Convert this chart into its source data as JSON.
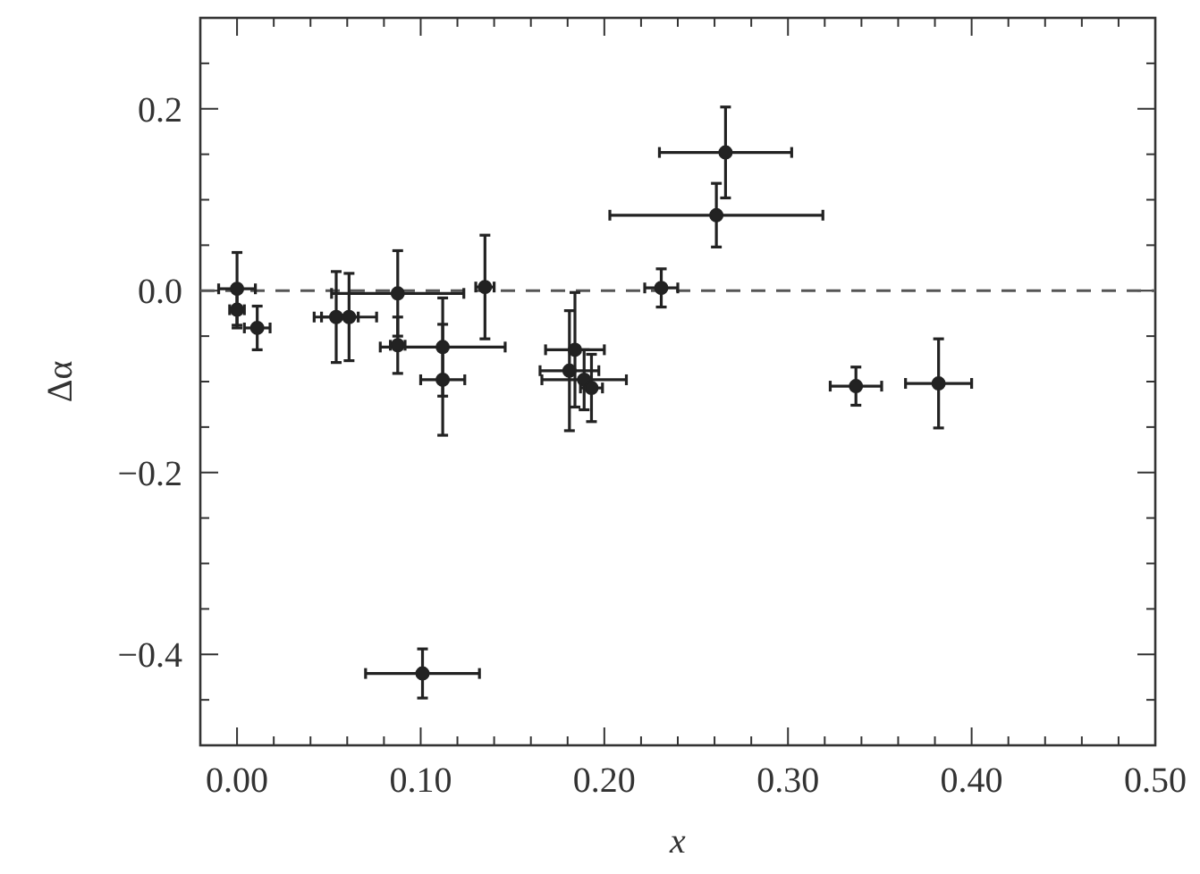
{
  "chart_data": {
    "type": "scatter",
    "xlabel": "x",
    "ylabel": "Δα",
    "xlim": [
      -0.02,
      0.5
    ],
    "ylim": [
      -0.5,
      0.3
    ],
    "xticks": [
      {
        "value": 0,
        "label": "0.00"
      },
      {
        "value": 0.02,
        "label": null
      },
      {
        "value": 0.04,
        "label": null
      },
      {
        "value": 0.06,
        "label": null
      },
      {
        "value": 0.08,
        "label": null
      },
      {
        "value": 0.1,
        "label": "0.10"
      },
      {
        "value": 0.12,
        "label": null
      },
      {
        "value": 0.14,
        "label": null
      },
      {
        "value": 0.16,
        "label": null
      },
      {
        "value": 0.18,
        "label": null
      },
      {
        "value": 0.2,
        "label": "0.20"
      },
      {
        "value": 0.22,
        "label": null
      },
      {
        "value": 0.24,
        "label": null
      },
      {
        "value": 0.26,
        "label": null
      },
      {
        "value": 0.28,
        "label": null
      },
      {
        "value": 0.3,
        "label": "0.30"
      },
      {
        "value": 0.32,
        "label": null
      },
      {
        "value": 0.34,
        "label": null
      },
      {
        "value": 0.36,
        "label": null
      },
      {
        "value": 0.38,
        "label": null
      },
      {
        "value": 0.4,
        "label": "0.40"
      },
      {
        "value": 0.42,
        "label": null
      },
      {
        "value": 0.44,
        "label": null
      },
      {
        "value": 0.46,
        "label": null
      },
      {
        "value": 0.48,
        "label": null
      },
      {
        "value": 0.5,
        "label": "0.50"
      }
    ],
    "yticks": [
      {
        "value": -0.45,
        "label": null
      },
      {
        "value": -0.4,
        "label": "−0.4"
      },
      {
        "value": -0.35,
        "label": null
      },
      {
        "value": -0.3,
        "label": null
      },
      {
        "value": -0.25,
        "label": null
      },
      {
        "value": -0.2,
        "label": "−0.2"
      },
      {
        "value": -0.15,
        "label": null
      },
      {
        "value": -0.1,
        "label": null
      },
      {
        "value": -0.05,
        "label": null
      },
      {
        "value": 0,
        "label": "0.0"
      },
      {
        "value": 0.05,
        "label": null
      },
      {
        "value": 0.1,
        "label": null
      },
      {
        "value": 0.15,
        "label": null
      },
      {
        "value": 0.2,
        "label": "0.2"
      },
      {
        "value": 0.25,
        "label": null
      }
    ],
    "marker": "circle",
    "ref_lines": [
      {
        "axis": "y",
        "value": 0,
        "line_style": "dashed",
        "color": "#555555"
      }
    ],
    "series": [
      {
        "color": "#222222",
        "x": [
          0.0,
          0.0,
          0.011,
          0.054,
          0.061,
          0.0875,
          0.0875,
          0.112,
          0.112,
          0.135,
          0.266,
          0.261,
          0.231,
          0.184,
          0.181,
          0.189,
          0.193,
          0.337,
          0.382,
          0.101
        ],
        "values": [
          0.002,
          -0.021,
          -0.041,
          -0.029,
          -0.029,
          -0.003,
          -0.06,
          -0.062,
          -0.098,
          0.004,
          0.152,
          0.083,
          0.003,
          -0.065,
          -0.088,
          -0.098,
          -0.107,
          -0.105,
          -0.102,
          -0.421
        ],
        "errors": [
          0.04,
          0.02,
          0.024,
          0.05,
          0.048,
          0.047,
          0.031,
          0.054,
          0.061,
          0.057,
          0.05,
          0.035,
          0.021,
          0.063,
          0.066,
          0.033,
          0.037,
          0.021,
          0.049,
          0.027
        ],
        "xerrors": [
          0.01,
          0.004,
          0.007,
          0.012,
          0.015,
          0.036,
          0.004,
          0.034,
          0.012,
          0.005,
          0.036,
          0.058,
          0.009,
          0.016,
          0.016,
          0.023,
          0.006,
          0.014,
          0.018,
          0.031
        ]
      }
    ]
  }
}
